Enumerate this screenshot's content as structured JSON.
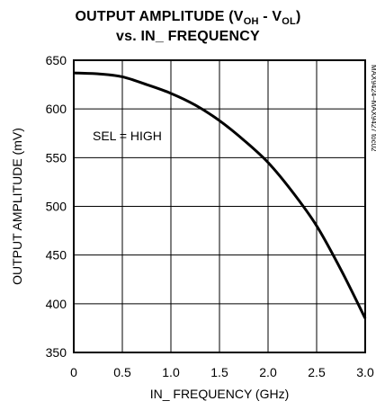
{
  "chart_data": {
    "type": "line",
    "title_line_1_prefix": "OUTPUT AMPLITUDE (V",
    "title_sub_1": "OH",
    "title_mid": " - V",
    "title_sub_2": "OL",
    "title_line_1_suffix": ")",
    "title_line_2": "vs. IN_ FREQUENCY",
    "xlabel": "IN_ FREQUENCY (GHz)",
    "ylabel": "OUTPUT AMPLITUDE (mV)",
    "xlim": [
      0,
      3.0
    ],
    "ylim": [
      350,
      650
    ],
    "x_ticks": [
      "0",
      "0.5",
      "1.0",
      "1.5",
      "2.0",
      "2.5",
      "3.0"
    ],
    "y_ticks": [
      "350",
      "400",
      "450",
      "500",
      "550",
      "600",
      "650"
    ],
    "grid": true,
    "annotation": "SEL = HIGH",
    "figure_code": "MAX9424–MAX9427 toc02",
    "series": [
      {
        "x": [
          0,
          0.25,
          0.5,
          0.75,
          1.0,
          1.25,
          1.5,
          1.75,
          2.0,
          2.25,
          2.5,
          2.75,
          3.0
        ],
        "y": [
          637,
          636,
          633,
          625,
          616,
          604,
          588,
          568,
          545,
          515,
          480,
          435,
          385
        ]
      }
    ]
  }
}
